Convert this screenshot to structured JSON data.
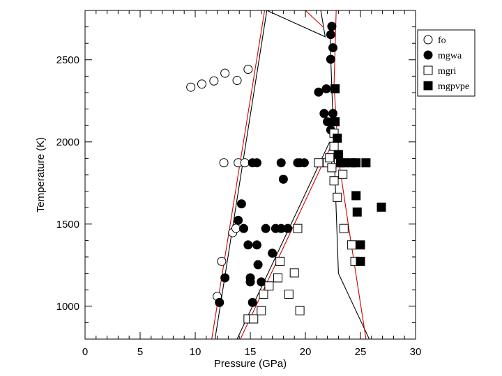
{
  "chart_data": {
    "type": "scatter",
    "xlabel": "Pressure (GPa)",
    "ylabel": "Temperature (K)",
    "xlim": [
      0,
      30
    ],
    "ylim": [
      800,
      2800
    ],
    "x_ticks": [
      0,
      5,
      10,
      15,
      20,
      25,
      30
    ],
    "x_tick_labels": [
      "0",
      "5",
      "10",
      "15",
      "20",
      "25",
      "30"
    ],
    "y_ticks": [
      1000,
      1500,
      2000,
      2500
    ],
    "y_tick_labels": [
      "1000",
      "1500",
      "2000",
      "2500"
    ],
    "legend_position": "right-top",
    "series": [
      {
        "name": "fo",
        "marker": "open-circle",
        "points": [
          [
            9.6,
            2333
          ],
          [
            10.6,
            2352
          ],
          [
            11.7,
            2371
          ],
          [
            12.7,
            2418
          ],
          [
            13.8,
            2374
          ],
          [
            14.8,
            2442
          ],
          [
            12.6,
            1873
          ],
          [
            13.9,
            1873
          ],
          [
            14.5,
            1873
          ],
          [
            12.0,
            1060
          ],
          [
            12.4,
            1273
          ],
          [
            13.4,
            1448
          ],
          [
            13.7,
            1474
          ]
        ]
      },
      {
        "name": "mgwa",
        "marker": "filled-circle",
        "points": [
          [
            12.2,
            1023
          ],
          [
            12.7,
            1173
          ],
          [
            13.9,
            1523
          ],
          [
            14.2,
            1623
          ],
          [
            14.4,
            1473
          ],
          [
            14.8,
            1373
          ],
          [
            15.0,
            1173
          ],
          [
            15.0,
            1148
          ],
          [
            15.2,
            1023
          ],
          [
            15.6,
            1373
          ],
          [
            15.7,
            1253
          ],
          [
            16.0,
            1148
          ],
          [
            16.4,
            1473
          ],
          [
            17.0,
            1323
          ],
          [
            17.3,
            1473
          ],
          [
            17.8,
            1473
          ],
          [
            18.4,
            1473
          ],
          [
            15.2,
            1873
          ],
          [
            15.6,
            1873
          ],
          [
            17.8,
            1873
          ],
          [
            18.0,
            1773
          ],
          [
            19.3,
            1873
          ],
          [
            19.5,
            1873
          ],
          [
            19.9,
            1873
          ],
          [
            21.2,
            2303
          ],
          [
            21.7,
            2173
          ],
          [
            22.0,
            2123
          ],
          [
            21.9,
            2323
          ],
          [
            22.3,
            2073
          ],
          [
            22.5,
            2173
          ],
          [
            22.4,
            2123
          ],
          [
            22.3,
            2503
          ],
          [
            22.5,
            2573
          ],
          [
            22.3,
            2653
          ],
          [
            22.4,
            2703
          ]
        ]
      },
      {
        "name": "mgri",
        "marker": "open-square",
        "points": [
          [
            14.8,
            923
          ],
          [
            15.3,
            923
          ],
          [
            16.0,
            973
          ],
          [
            16.2,
            1073
          ],
          [
            16.7,
            1123
          ],
          [
            17.5,
            1173
          ],
          [
            17.7,
            1273
          ],
          [
            18.5,
            1073
          ],
          [
            19.0,
            1203
          ],
          [
            19.5,
            973
          ],
          [
            19.3,
            1473
          ],
          [
            21.2,
            1873
          ],
          [
            22.0,
            1873
          ],
          [
            22.2,
            1903
          ],
          [
            22.4,
            1843
          ],
          [
            22.6,
            1973
          ],
          [
            22.6,
            2053
          ],
          [
            22.6,
            1763
          ],
          [
            22.9,
            1663
          ],
          [
            23.4,
            1803
          ],
          [
            23.5,
            1473
          ],
          [
            24.2,
            1373
          ],
          [
            24.5,
            1273
          ]
        ]
      },
      {
        "name": "mgpvpe",
        "marker": "filled-square",
        "points": [
          [
            22.9,
            2023
          ],
          [
            23.0,
            1923
          ],
          [
            23.2,
            1873
          ],
          [
            23.5,
            1873
          ],
          [
            24.2,
            1873
          ],
          [
            24.6,
            1873
          ],
          [
            25.5,
            1873
          ],
          [
            24.6,
            1673
          ],
          [
            24.7,
            1573
          ],
          [
            25.0,
            1373
          ],
          [
            25.0,
            1273
          ],
          [
            26.9,
            1603
          ],
          [
            22.7,
            2323
          ],
          [
            22.7,
            2123
          ]
        ]
      }
    ],
    "lines": [
      {
        "color": "#000000",
        "points": [
          [
            11.8,
            800
          ],
          [
            16.5,
            2800
          ]
        ]
      },
      {
        "color": "#cc0000",
        "points": [
          [
            11.5,
            800
          ],
          [
            16.3,
            2800
          ]
        ]
      },
      {
        "color": "#000000",
        "points": [
          [
            13.8,
            800
          ],
          [
            22.2,
            2000
          ]
        ]
      },
      {
        "color": "#cc0000",
        "points": [
          [
            14.1,
            800
          ],
          [
            22.5,
            2000
          ]
        ]
      },
      {
        "color": "#000000",
        "points": [
          [
            22.2,
            2700
          ],
          [
            23.0,
            1200
          ],
          [
            25.8,
            800
          ]
        ]
      },
      {
        "color": "#cc0000",
        "points": [
          [
            22.8,
            2800
          ],
          [
            22.6,
            2350
          ],
          [
            23.0,
            1900
          ],
          [
            24.0,
            1450
          ],
          [
            25.5,
            800
          ]
        ]
      },
      {
        "color": "#000000",
        "points": [
          [
            16.5,
            2800
          ],
          [
            21.8,
            2640
          ],
          [
            21.4,
            2800
          ]
        ]
      },
      {
        "color": "#cc0000",
        "points": [
          [
            20.0,
            2800
          ],
          [
            21.6,
            2700
          ]
        ]
      }
    ]
  }
}
